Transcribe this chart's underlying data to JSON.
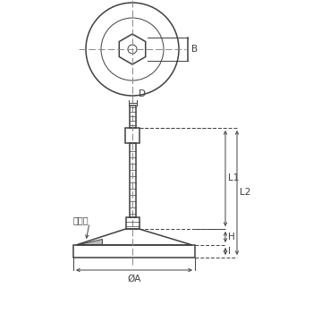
{
  "bg_color": "#ffffff",
  "line_color": "#404040",
  "dim_color": "#404040",
  "center_line_color": "#888888",
  "fill_color": "#bbbbbb",
  "labels": {
    "B": "B",
    "D": "D",
    "L1": "L1",
    "L2": "L2",
    "H": "H",
    "I": "I",
    "A": "ØA",
    "kashime": "カシメ"
  }
}
